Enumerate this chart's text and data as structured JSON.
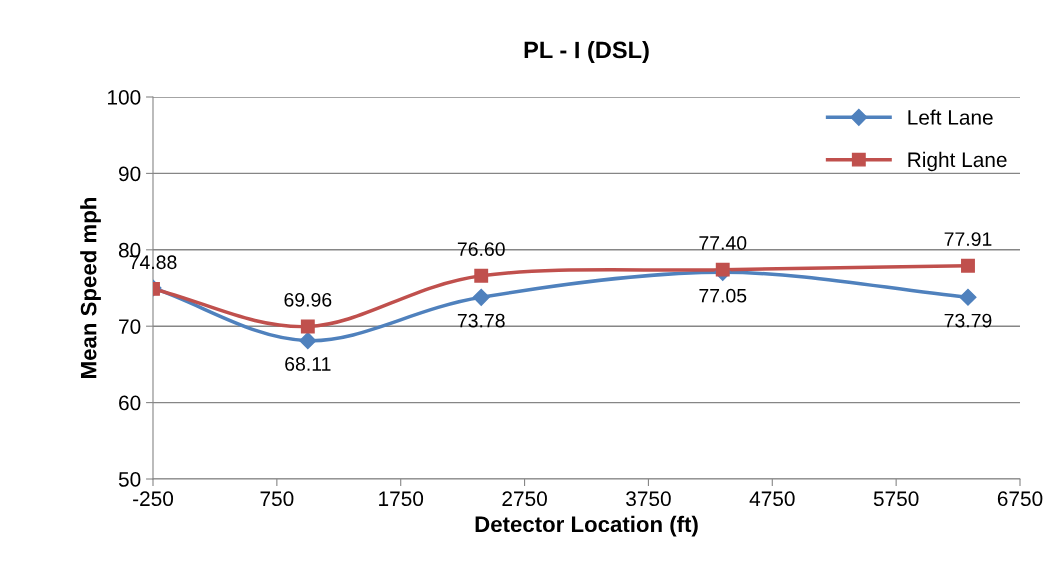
{
  "chart_data": {
    "type": "line",
    "title": "PL - I (DSL)",
    "xlabel": "Detector Location (ft)",
    "ylabel": "Mean Speed mph",
    "xlim": [
      -250,
      6750
    ],
    "xticks": [
      -250,
      750,
      1750,
      2750,
      3750,
      4750,
      5750,
      6750
    ],
    "ylim": [
      50,
      100
    ],
    "yticks": [
      50,
      60,
      70,
      80,
      90,
      100
    ],
    "grid": "y",
    "legend": "top right",
    "series": [
      {
        "name": "Left Lane",
        "color": "#4f81bd",
        "marker": "diamond",
        "x": [
          -250,
          1000,
          2400,
          4350,
          6330
        ],
        "values": [
          75,
          68.11,
          73.78,
          77.05,
          73.79
        ],
        "value_labels": [
          null,
          "68.11",
          "73.78",
          "77.05",
          "73.79"
        ]
      },
      {
        "name": "Right Lane",
        "color": "#c0504d",
        "marker": "square",
        "x": [
          -250,
          1000,
          2400,
          4350,
          6330
        ],
        "values": [
          74.88,
          69.96,
          76.6,
          77.4,
          77.91
        ],
        "value_labels": [
          "74.88",
          "69.96",
          "76.60",
          "77.40",
          "77.91"
        ]
      }
    ]
  }
}
